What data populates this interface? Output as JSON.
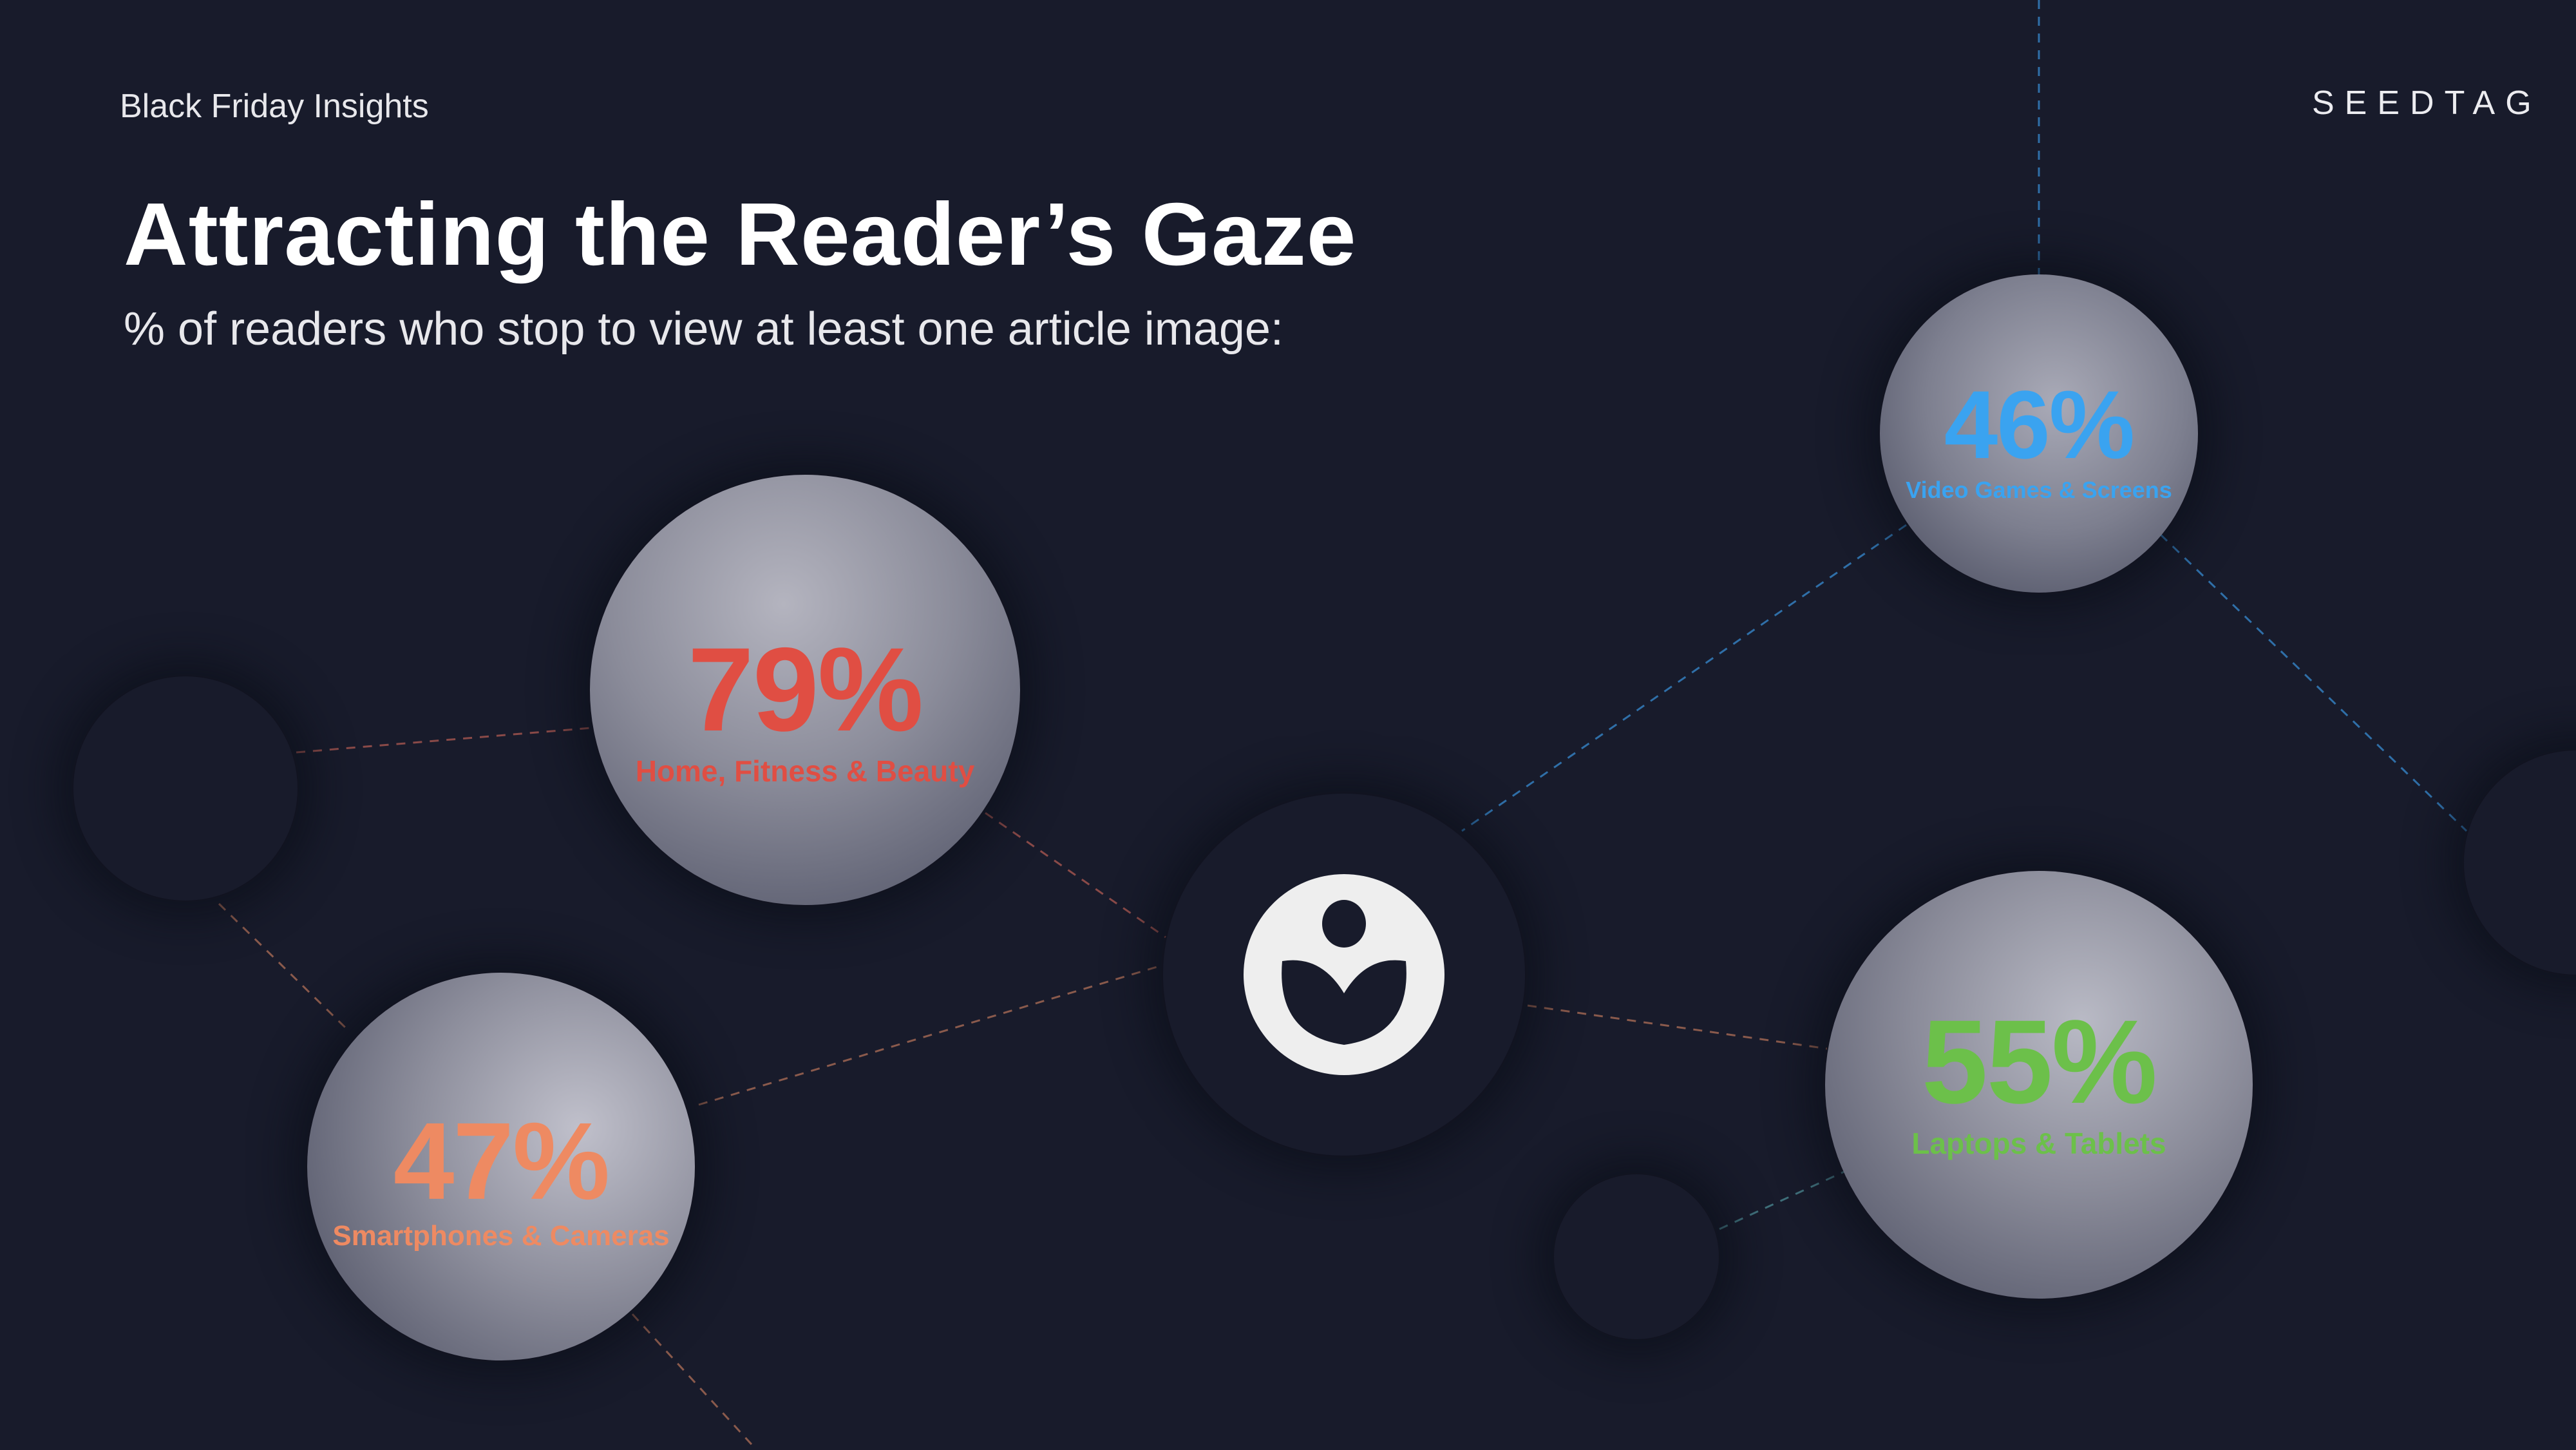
{
  "header": {
    "eyebrow": "Black Friday Insights",
    "brand": "SEEDTAG",
    "title": "Attracting the Reader’s Gaze",
    "subtitle": "% of readers who stop to view at least one article image:"
  },
  "categories": [
    {
      "value": "79%",
      "label": "Home, Fitness & Beauty",
      "color": "#e04e43",
      "image": "man-doing-yoga-photo"
    },
    {
      "value": "46%",
      "label": "Video Games & Screens",
      "color": "#3aa3f0",
      "image": "people-with-vr-headsets-photo"
    },
    {
      "value": "47%",
      "label": "Smartphones & Cameras",
      "color": "#ee8a62",
      "image": "woman-with-camera-photo"
    },
    {
      "value": "55%",
      "label": "Laptops & Tablets",
      "color": "#6cc04a",
      "image": "man-with-laptop-photo"
    }
  ],
  "center_icon": "seedtag-logo-icon",
  "colors": {
    "background": "#181b2b",
    "text": "#ffffff"
  }
}
